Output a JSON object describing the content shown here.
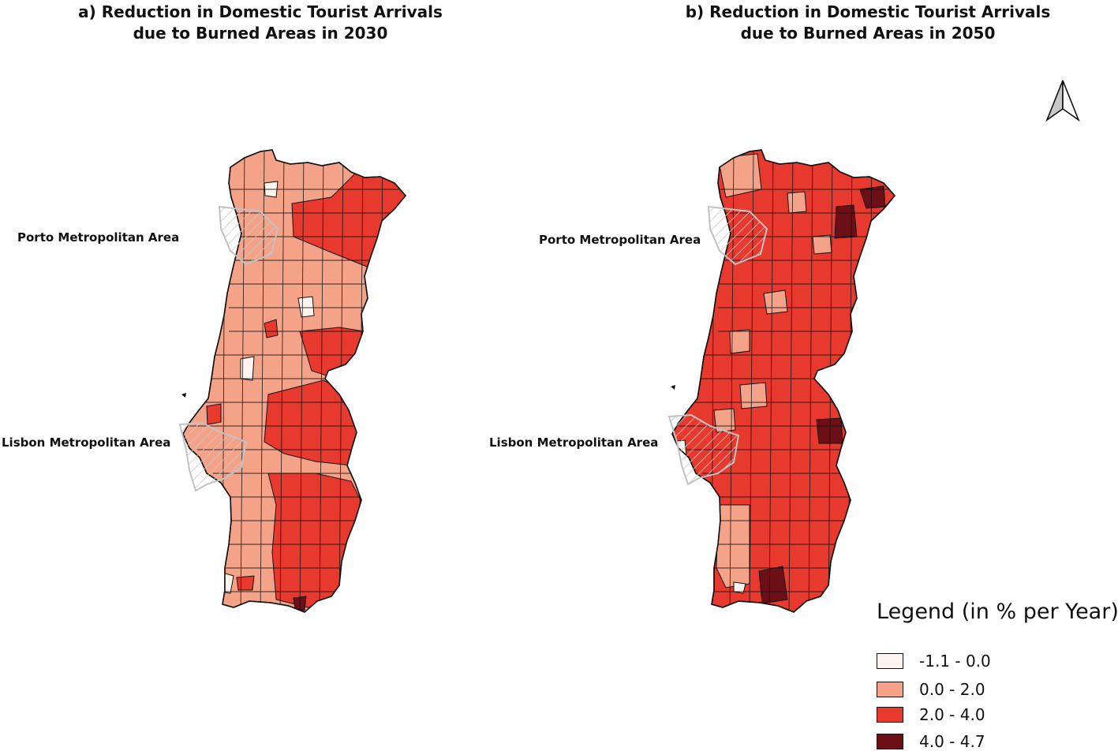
{
  "maps": [
    {
      "id": "a",
      "title_line1": "a) Reduction in Domestic Tourist Arrivals",
      "title_line2": "due to Burned Areas in 2030",
      "labels": [
        "Porto Metropolitan Area",
        "Lisbon Metropolitan Area"
      ]
    },
    {
      "id": "b",
      "title_line1": "b) Reduction in Domestic Tourist Arrivals",
      "title_line2": "due to Burned Areas in 2050",
      "labels": [
        "Porto Metropolitan Area",
        "Lisbon Metropolitan Area"
      ]
    }
  ],
  "north_arrow_icon": "north-arrow-icon",
  "legend": {
    "title": "Legend (in % per Year)",
    "classes": [
      {
        "label": "-1.1 - 0.0",
        "color": "#fdf3ef"
      },
      {
        "label": "0.0 - 2.0",
        "color": "#f4a288"
      },
      {
        "label": "2.0 - 4.0",
        "color": "#e8392e"
      },
      {
        "label": "4.0 - 4.7",
        "color": "#6d0f16"
      }
    ]
  }
}
